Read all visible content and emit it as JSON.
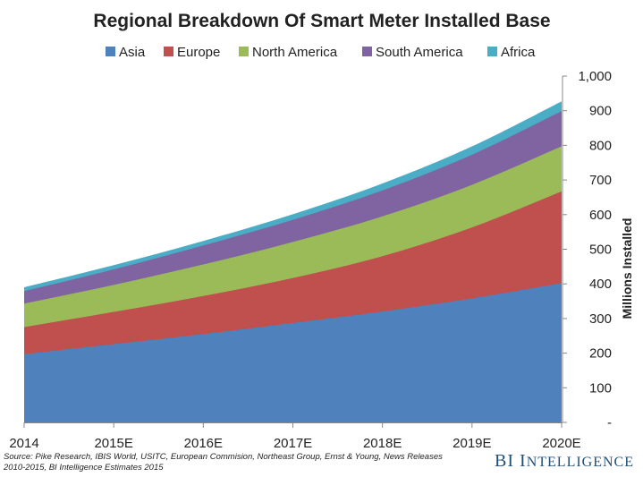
{
  "chart_data": {
    "type": "area",
    "stacked": true,
    "title": "Regional Breakdown Of Smart Meter Installed Base",
    "ylabel": "Millions Installed",
    "xlabel": "",
    "categories": [
      "2014",
      "2015E",
      "2016E",
      "2017E",
      "2018E",
      "2019E",
      "2020E"
    ],
    "ylim": [
      0,
      1000
    ],
    "yticks": [
      0,
      100,
      200,
      300,
      400,
      500,
      600,
      700,
      800,
      900,
      1000
    ],
    "ytick_labels": [
      "-",
      "100",
      "200",
      "300",
      "400",
      "500",
      "600",
      "700",
      "800",
      "900",
      "1,000"
    ],
    "y_axis_side": "right",
    "grid": false,
    "legend_position": "top",
    "series": [
      {
        "name": "Asia",
        "color": "#4f81bd",
        "values": [
          197,
          226,
          255,
          287,
          320,
          358,
          402
        ]
      },
      {
        "name": "Europe",
        "color": "#c0504d",
        "values": [
          78,
          93,
          110,
          130,
          160,
          205,
          265
        ]
      },
      {
        "name": "North America",
        "color": "#9bbb59",
        "values": [
          68,
          78,
          91,
          104,
          115,
          123,
          130
        ]
      },
      {
        "name": "South America",
        "color": "#8064a2",
        "values": [
          36,
          45,
          55,
          64,
          75,
          87,
          102
        ]
      },
      {
        "name": "Africa",
        "color": "#4bacc6",
        "values": [
          11,
          12,
          13,
          16,
          20,
          24,
          28
        ]
      }
    ]
  },
  "footer": {
    "source_line1": "Source: Pike Research, IBIS World, USITC, European Commision, Northeast Group, Ernst & Young, News Releases",
    "source_line2": "2010-2015, BI Intelligence Estimates 2015",
    "brand_b": "BI",
    "brand_i": "I",
    "brand_rest": "NTELLIGENCE"
  }
}
